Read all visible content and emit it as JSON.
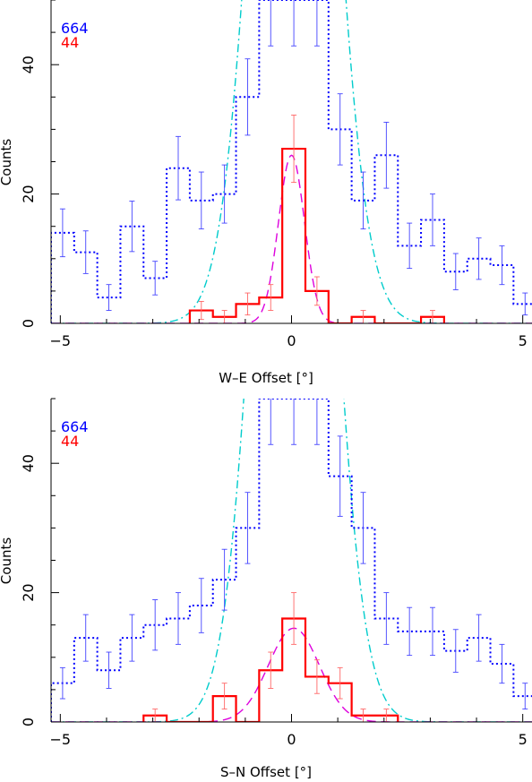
{
  "chart_data": [
    {
      "type": "histogram",
      "xlabel": "W–E Offset [°]",
      "ylabel": "Counts",
      "xlim": [
        -5.2,
        5.2
      ],
      "ylim": [
        0,
        50
      ],
      "xticks": [
        -5,
        0,
        5
      ],
      "yticks": [
        0,
        20,
        40
      ],
      "legend_placement": "top-left",
      "series": [
        {
          "name": "664",
          "color": "#0000ff",
          "style": "dotted-step",
          "bin_edges": [
            -5.2,
            -4.7,
            -4.2,
            -3.7,
            -3.2,
            -2.7,
            -2.2,
            -1.7,
            -1.2,
            -0.7,
            -0.2,
            0.3,
            0.8,
            1.3,
            1.8,
            2.3,
            2.8,
            3.3,
            3.8,
            4.3,
            4.8,
            5.3
          ],
          "values": [
            14,
            11,
            4,
            15,
            7,
            24,
            19,
            20,
            35,
            50,
            50,
            50,
            30,
            19,
            26,
            12,
            16,
            8,
            10,
            9,
            3
          ],
          "errors": [
            3.7,
            3.3,
            2.0,
            3.9,
            2.6,
            4.9,
            4.4,
            4.5,
            5.9,
            7.1,
            7.1,
            7.1,
            5.5,
            4.4,
            5.1,
            3.5,
            4.0,
            2.8,
            3.2,
            3.0,
            1.7
          ]
        },
        {
          "name": "44",
          "color": "#ff0000",
          "style": "solid-step",
          "bin_edges": [
            -2.2,
            -1.7,
            -1.2,
            -0.7,
            -0.2,
            0.3,
            0.8,
            1.3,
            1.8,
            2.3,
            2.8,
            3.3
          ],
          "values": [
            2,
            1,
            3,
            4,
            27,
            5,
            0,
            1,
            0,
            0,
            1
          ],
          "errors": [
            1.4,
            1.0,
            1.7,
            2.0,
            5.2,
            2.2,
            0,
            1.0,
            0,
            0,
            1.0
          ]
        }
      ],
      "curves": [
        {
          "name": "",
          "color": "#00cccc",
          "style": "dash-dot",
          "center": 0.05,
          "sigma": 0.75,
          "amplitude": 155
        },
        {
          "name": "",
          "color": "#dd00dd",
          "style": "dashed",
          "center": 0.0,
          "sigma": 0.28,
          "amplitude": 26
        }
      ]
    },
    {
      "type": "histogram",
      "xlabel": "S–N Offset [°]",
      "ylabel": "Counts",
      "xlim": [
        -5.2,
        5.2
      ],
      "ylim": [
        0,
        50
      ],
      "xticks": [
        -5,
        0,
        5
      ],
      "yticks": [
        0,
        20,
        40
      ],
      "legend_placement": "top-left",
      "series": [
        {
          "name": "664",
          "color": "#0000ff",
          "style": "dotted-step",
          "bin_edges": [
            -5.2,
            -4.7,
            -4.2,
            -3.7,
            -3.2,
            -2.7,
            -2.2,
            -1.7,
            -1.2,
            -0.7,
            -0.2,
            0.3,
            0.8,
            1.3,
            1.8,
            2.3,
            2.8,
            3.3,
            3.8,
            4.3,
            4.8,
            5.3
          ],
          "values": [
            6,
            13,
            8,
            13,
            15,
            16,
            18,
            22,
            30,
            50,
            50,
            50,
            38,
            30,
            16,
            14,
            14,
            11,
            13,
            9,
            4
          ],
          "errors": [
            2.4,
            3.6,
            2.8,
            3.6,
            3.9,
            4.0,
            4.2,
            4.7,
            5.5,
            7.1,
            7.1,
            7.1,
            6.2,
            5.5,
            4.0,
            3.7,
            3.7,
            3.3,
            3.6,
            3.0,
            2.0
          ]
        },
        {
          "name": "44",
          "color": "#ff0000",
          "style": "solid-step",
          "bin_edges": [
            -3.2,
            -2.7,
            -2.2,
            -1.7,
            -1.2,
            -0.7,
            -0.2,
            0.3,
            0.8,
            1.3,
            1.8,
            2.3
          ],
          "values": [
            1,
            0,
            0,
            4,
            0,
            8,
            16,
            7,
            6,
            1,
            1
          ],
          "errors": [
            1.0,
            0,
            0,
            2.0,
            0,
            2.8,
            4.0,
            2.6,
            2.4,
            1.0,
            1.0
          ]
        }
      ],
      "curves": [
        {
          "name": "",
          "color": "#00cccc",
          "style": "dash-dot",
          "center": 0.05,
          "sigma": 0.72,
          "amplitude": 155
        },
        {
          "name": "",
          "color": "#dd00dd",
          "style": "dashed",
          "center": 0.05,
          "sigma": 0.55,
          "amplitude": 14.5
        }
      ]
    }
  ]
}
